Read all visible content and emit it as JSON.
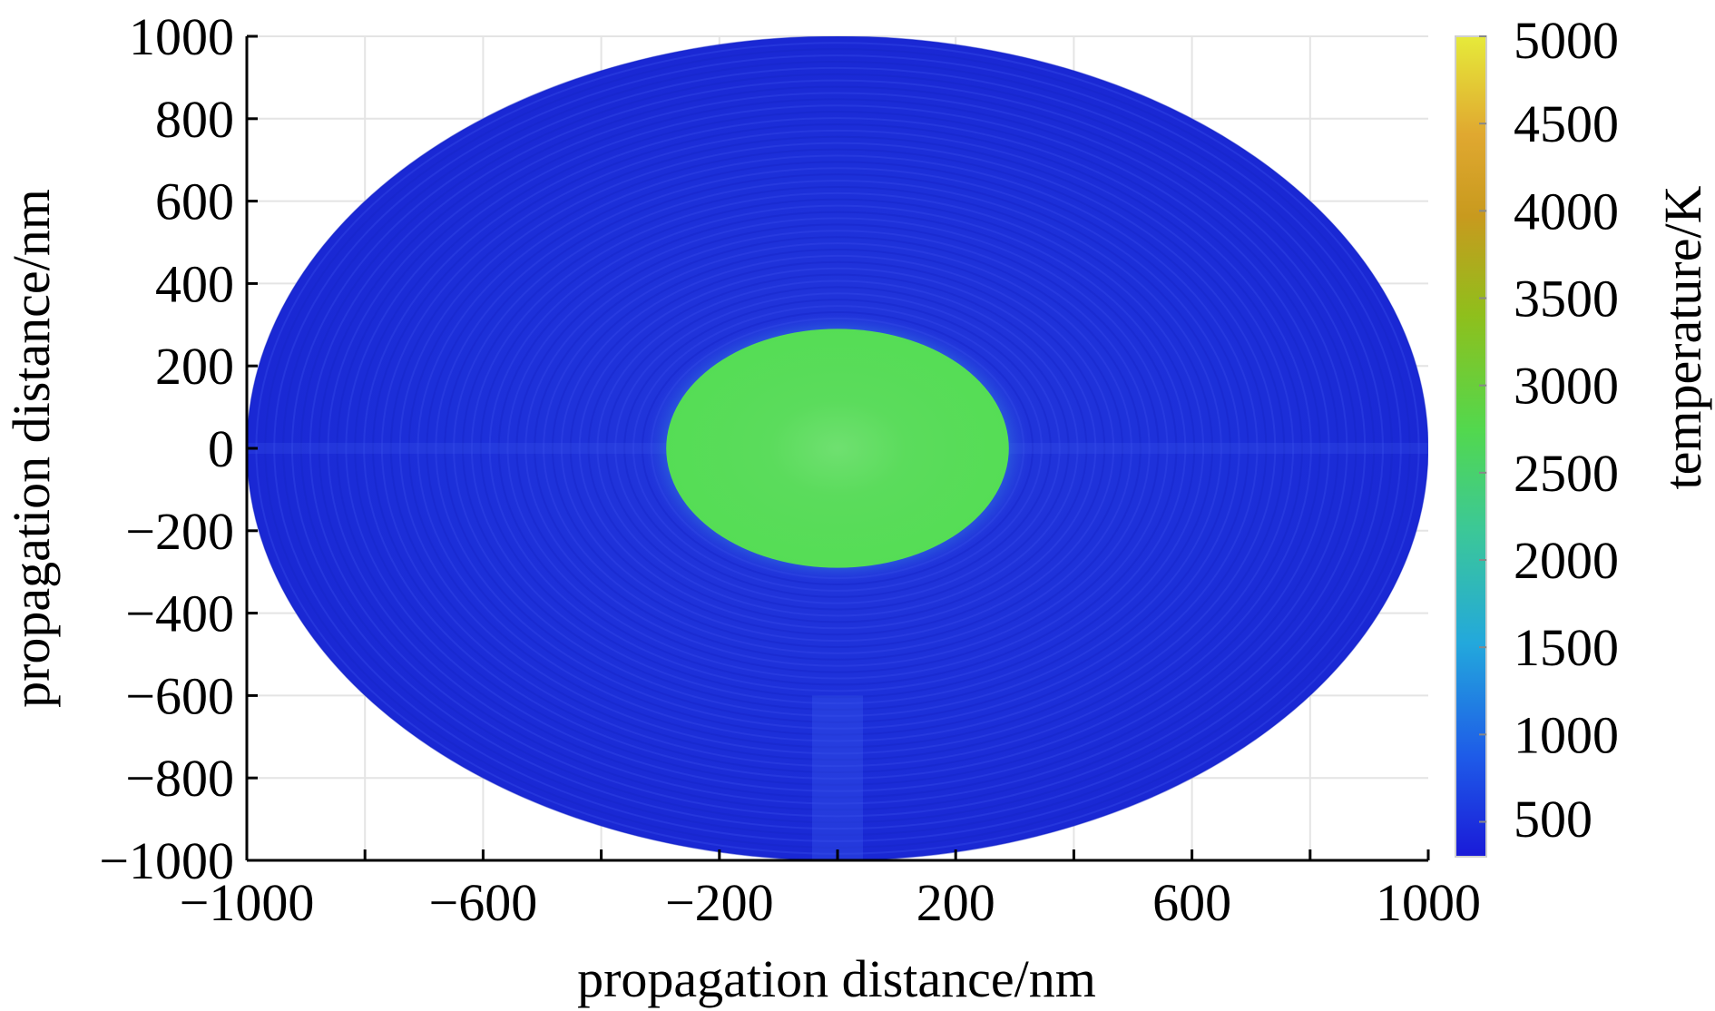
{
  "chart_data": {
    "type": "heatmap",
    "title": "",
    "xlabel": "propagation distance/nm",
    "ylabel": "propagation distance/nm",
    "xlim": [
      -1000,
      1000
    ],
    "ylim": [
      -1000,
      1000
    ],
    "x_ticks": [
      -1000,
      -600,
      -200,
      200,
      600,
      1000
    ],
    "x_tick_labels": [
      "−1000",
      "−600",
      "−200",
      "200",
      "600",
      "1000"
    ],
    "y_ticks": [
      1000,
      800,
      600,
      400,
      200,
      0,
      -200,
      -400,
      -600,
      -800,
      -1000
    ],
    "y_tick_labels": [
      "1000",
      "800",
      "600",
      "400",
      "200",
      "0",
      "−200",
      "−400",
      "−600",
      "−800",
      "−1000"
    ],
    "grid": true,
    "colorbar": {
      "label": "temperature/K",
      "range": [
        300,
        5000
      ],
      "ticks": [
        5000,
        4500,
        4000,
        3500,
        3000,
        2500,
        2000,
        1500,
        1000,
        500
      ],
      "tick_labels": [
        "5000",
        "4500",
        "4000",
        "3500",
        "3000",
        "2500",
        "2000",
        "1500",
        "1000",
        "500"
      ],
      "colormap": [
        "#1a1ad8",
        "#1e5ae8",
        "#23a8dc",
        "#3cc896",
        "#52d84e",
        "#8fbf1c",
        "#c89a1e",
        "#e0a830",
        "#e6ea3a"
      ]
    },
    "regions": [
      {
        "name": "outer domain",
        "x_radius": 1000,
        "y_radius": 1000,
        "temperature": 500,
        "color": "#1a2fdc"
      },
      {
        "name": "heated core",
        "x_radius": 290,
        "y_radius": 290,
        "temperature": 3000,
        "color": "#55dd55"
      }
    ]
  }
}
